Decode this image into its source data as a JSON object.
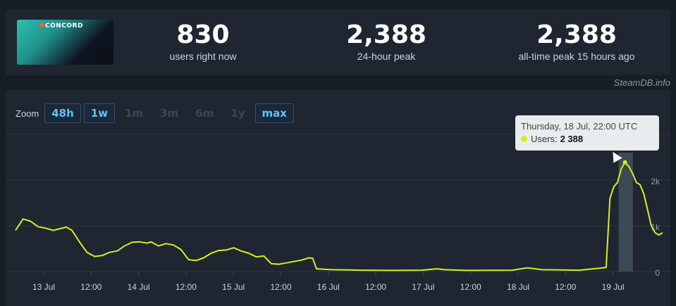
{
  "stats": [
    {
      "value": "830",
      "label": "users right now"
    },
    {
      "value": "2,388",
      "label": "24-hour peak"
    },
    {
      "value": "2,388",
      "label": "all-time peak 15 hours ago"
    }
  ],
  "game_logo_text": "CONCORD",
  "credit": "SteamDB.info",
  "zoom": {
    "label": "Zoom",
    "options": [
      {
        "label": "48h",
        "active": true
      },
      {
        "label": "1w",
        "active": true
      },
      {
        "label": "1m",
        "active": false
      },
      {
        "label": "3m",
        "active": false
      },
      {
        "label": "6m",
        "active": false
      },
      {
        "label": "1y",
        "active": false
      },
      {
        "label": "max",
        "active": true
      }
    ]
  },
  "tooltip": {
    "title": "Thursday, 18 Jul, 22:00 UTC",
    "series_label": "Users:",
    "value": "2 388"
  },
  "colors": {
    "line": "#d4f01c",
    "accent": "#66c0f4"
  },
  "chart_data": {
    "type": "line",
    "x_tick_labels": [
      "13 Jul",
      "12:00",
      "14 Jul",
      "12:00",
      "15 Jul",
      "12:00",
      "16 Jul",
      "12:00",
      "17 Jul",
      "12:00",
      "18 Jul",
      "12:00",
      "19 Jul"
    ],
    "y_tick_labels": [
      "0",
      "1k",
      "2k"
    ],
    "ylim": [
      0,
      3000
    ],
    "grid": true,
    "series": [
      {
        "values": [
          [
            0,
            900
          ],
          [
            2,
            1150
          ],
          [
            4,
            1100
          ],
          [
            6,
            980
          ],
          [
            8,
            950
          ],
          [
            10,
            900
          ],
          [
            12,
            940
          ],
          [
            13.5,
            970
          ],
          [
            15,
            900
          ],
          [
            17,
            650
          ],
          [
            19,
            420
          ],
          [
            21,
            330
          ],
          [
            23,
            350
          ],
          [
            25,
            420
          ],
          [
            27,
            450
          ],
          [
            29,
            560
          ],
          [
            31,
            640
          ],
          [
            33,
            650
          ],
          [
            35,
            620
          ],
          [
            36,
            650
          ],
          [
            38,
            560
          ],
          [
            40,
            610
          ],
          [
            42,
            580
          ],
          [
            44,
            480
          ],
          [
            46,
            260
          ],
          [
            48,
            240
          ],
          [
            50,
            300
          ],
          [
            52,
            400
          ],
          [
            54,
            460
          ],
          [
            56,
            470
          ],
          [
            58,
            520
          ],
          [
            60,
            450
          ],
          [
            62,
            400
          ],
          [
            64,
            320
          ],
          [
            66,
            340
          ],
          [
            68,
            170
          ],
          [
            70,
            160
          ],
          [
            72,
            190
          ],
          [
            74,
            220
          ],
          [
            76,
            250
          ],
          [
            78,
            300
          ],
          [
            79,
            290
          ],
          [
            80,
            60
          ],
          [
            84,
            40
          ],
          [
            92,
            30
          ],
          [
            100,
            25
          ],
          [
            108,
            30
          ],
          [
            112,
            60
          ],
          [
            114,
            40
          ],
          [
            120,
            25
          ],
          [
            132,
            30
          ],
          [
            136,
            80
          ],
          [
            140,
            40
          ],
          [
            150,
            30
          ],
          [
            157,
            90
          ],
          [
            158,
            1600
          ],
          [
            159,
            1850
          ],
          [
            160,
            1950
          ],
          [
            161,
            2250
          ],
          [
            162,
            2388
          ],
          [
            163,
            2300
          ],
          [
            164,
            2150
          ],
          [
            165,
            1950
          ],
          [
            166,
            1900
          ],
          [
            167,
            1700
          ],
          [
            168,
            1350
          ],
          [
            169,
            1000
          ],
          [
            170,
            850
          ],
          [
            171,
            800
          ],
          [
            172,
            850
          ]
        ]
      }
    ]
  }
}
